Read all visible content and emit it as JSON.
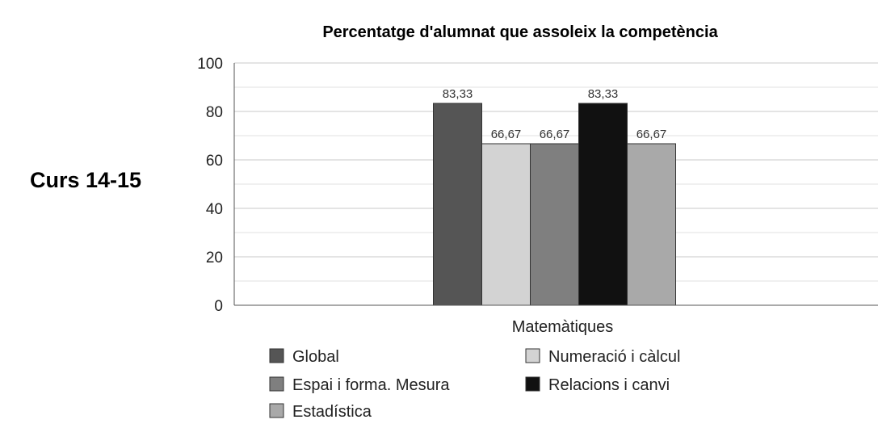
{
  "side_label": "Curs 14-15",
  "chart_data": {
    "type": "bar",
    "title": "Percentatge d'alumnat que assoleix la competència",
    "xlabel": "",
    "ylabel": "",
    "categories": [
      "Matemàtiques"
    ],
    "ylim": [
      0,
      100
    ],
    "yticks": [
      0,
      20,
      40,
      60,
      80,
      100
    ],
    "grid": true,
    "legend_position": "bottom",
    "series": [
      {
        "name": "Global",
        "values": [
          83.33
        ],
        "labels": [
          "83,33"
        ],
        "color": "#555555"
      },
      {
        "name": "Numeració i càlcul",
        "values": [
          66.67
        ],
        "labels": [
          "66,67"
        ],
        "color": "#d3d3d3"
      },
      {
        "name": "Espai i forma. Mesura",
        "values": [
          66.67
        ],
        "labels": [
          "66,67"
        ],
        "color": "#7f7f7f"
      },
      {
        "name": "Relacions i canvi",
        "values": [
          83.33
        ],
        "labels": [
          "83,33"
        ],
        "color": "#111111"
      },
      {
        "name": "Estadística",
        "values": [
          66.67
        ],
        "labels": [
          "66,67"
        ],
        "color": "#a9a9a9"
      }
    ]
  }
}
